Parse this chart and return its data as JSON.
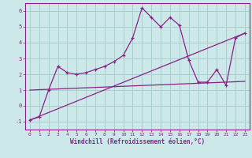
{
  "xlabel": "Windchill (Refroidissement éolien,°C)",
  "bg_color": "#cce8e8",
  "grid_color": "#aacece",
  "line_color": "#882288",
  "xlim": [
    -0.5,
    23.5
  ],
  "ylim": [
    -1.5,
    6.5
  ],
  "xticks": [
    0,
    1,
    2,
    3,
    4,
    5,
    6,
    7,
    8,
    9,
    10,
    11,
    12,
    13,
    14,
    15,
    16,
    17,
    18,
    19,
    20,
    21,
    22,
    23
  ],
  "yticks": [
    -1,
    0,
    1,
    2,
    3,
    4,
    5,
    6
  ],
  "series1_x": [
    0,
    1,
    2,
    3,
    4,
    5,
    6,
    7,
    8,
    9,
    10,
    11,
    12,
    13,
    14,
    15,
    16,
    17,
    18,
    19,
    20,
    21,
    22,
    23
  ],
  "series1_y": [
    -0.9,
    -0.7,
    1.0,
    2.5,
    2.1,
    2.0,
    2.1,
    2.3,
    2.5,
    2.8,
    3.2,
    4.3,
    6.2,
    5.6,
    5.0,
    5.6,
    5.1,
    2.9,
    1.5,
    1.5,
    2.3,
    1.3,
    4.3,
    4.6
  ],
  "series2_x": [
    0,
    23
  ],
  "series2_y": [
    -0.9,
    4.6
  ],
  "series3_x": [
    0,
    23
  ],
  "series3_y": [
    1.0,
    1.55
  ],
  "marker": "+"
}
